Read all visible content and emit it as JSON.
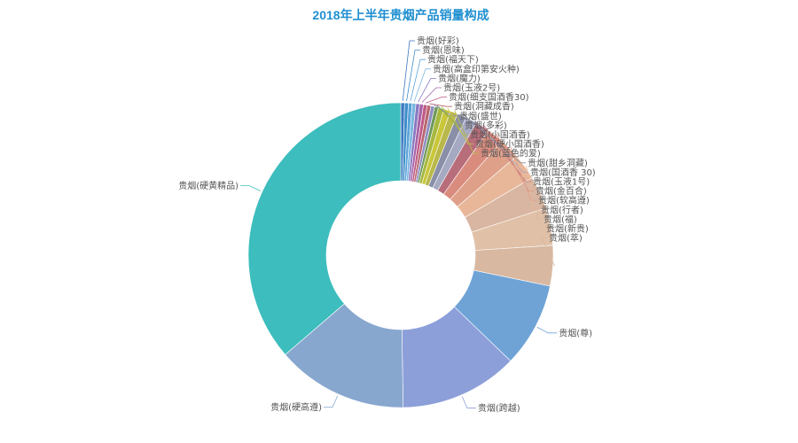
{
  "chart_data": {
    "type": "pie",
    "variant": "donut",
    "title": "2018年上半年贵烟产品销量构成",
    "title_color": "#1f8fd0",
    "labels": [
      "贵烟(好彩)",
      "贵烟(恩味)",
      "贵烟(福天下)",
      "贵烟(高盒印第安火种)",
      "贵烟(魔力)",
      "贵烟(玉液2号)",
      "贵烟(细支国酒香30)",
      "贵烟(洞藏成香)",
      "贵烟(盛世)",
      "贵烟(多彩)",
      "贵烟(小国酒香)",
      "贵烟(硬小国酒香)",
      "贵烟(蓝色的爱)",
      "贵烟(甜乡洞藏)",
      "贵烟(国酒香 30)",
      "贵烟(玉液1号)",
      "贵烟(金百合)",
      "贵烟(软高遵)",
      "贵烟(行者)",
      "贵烟(福)",
      "贵烟(新贵)",
      "贵烟(萃)",
      "贵烟(尊)",
      "贵烟(跨越)",
      "贵烟(硬高遵)",
      "贵烟(硬黄精品)"
    ],
    "values": [
      0.4,
      0.4,
      0.4,
      0.4,
      0.4,
      0.4,
      0.4,
      0.4,
      0.4,
      0.4,
      0.6,
      0.7,
      0.8,
      1.0,
      1.2,
      1.5,
      1.8,
      2.2,
      2.8,
      3.5,
      4.0,
      4.3,
      9.0,
      12.6,
      14.0,
      36.5
    ],
    "colors": [
      "#3b76c0",
      "#3e8dc9",
      "#5aa3d9",
      "#7ab6e0",
      "#8a79c2",
      "#a663a8",
      "#c05a86",
      "#b9666f",
      "#8f8ec3",
      "#6f9a5a",
      "#a7b83f",
      "#c9c63a",
      "#b9b84a",
      "#8a8fa8",
      "#a6a9c2",
      "#b86d7a",
      "#d98c7d",
      "#dfa08a",
      "#e8b79a",
      "#d9b6a2",
      "#e0c1a8",
      "#d8b8a0",
      "#6fa3d6",
      "#8c9fd9",
      "#88a7cf",
      "#3dbdbd"
    ]
  }
}
